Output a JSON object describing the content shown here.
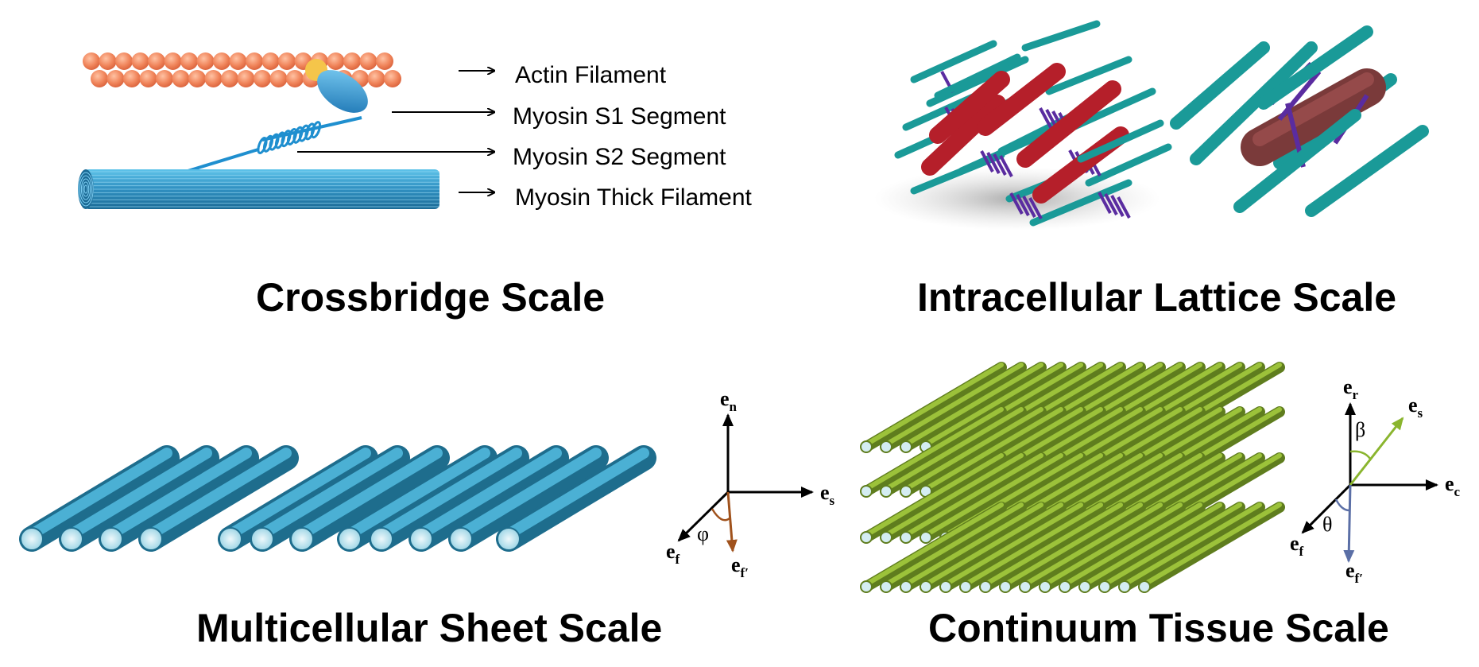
{
  "panels": {
    "crossbridge": {
      "title": "Crossbridge Scale",
      "labels": [
        "Actin Filament",
        "Myosin S1 Segment",
        "Myosin S2 Segment",
        "Myosin Thick Filament"
      ]
    },
    "lattice": {
      "title": "Intracellular Lattice Scale"
    },
    "sheet": {
      "title": "Multicellular Sheet Scale",
      "axes": {
        "n": "n",
        "s": "s",
        "f": "f",
        "fp": "f′",
        "angle": "φ",
        "base": "e"
      }
    },
    "tissue": {
      "title": "Continuum Tissue Scale",
      "axes": {
        "r": "r",
        "s": "s",
        "c": "c",
        "f": "f",
        "fp": "f′",
        "angle_beta": "β",
        "angle_theta": "θ",
        "base": "e"
      }
    }
  },
  "colors": {
    "actin": "#f08a5d",
    "myosin_head": "#1f8fcf",
    "thick_filament": "#3aa6d6",
    "lattice_thin": "#1a9a98",
    "lattice_thick": "#b51f2a",
    "crossbridge": "#5a2ca0",
    "sheet_fiber": "#2f8fb0",
    "tissue_fiber": "#8ab02e",
    "ef_prime_brown": "#a0521c",
    "es_green": "#8ab52e",
    "ef_prime_blue": "#5b6fa6"
  }
}
